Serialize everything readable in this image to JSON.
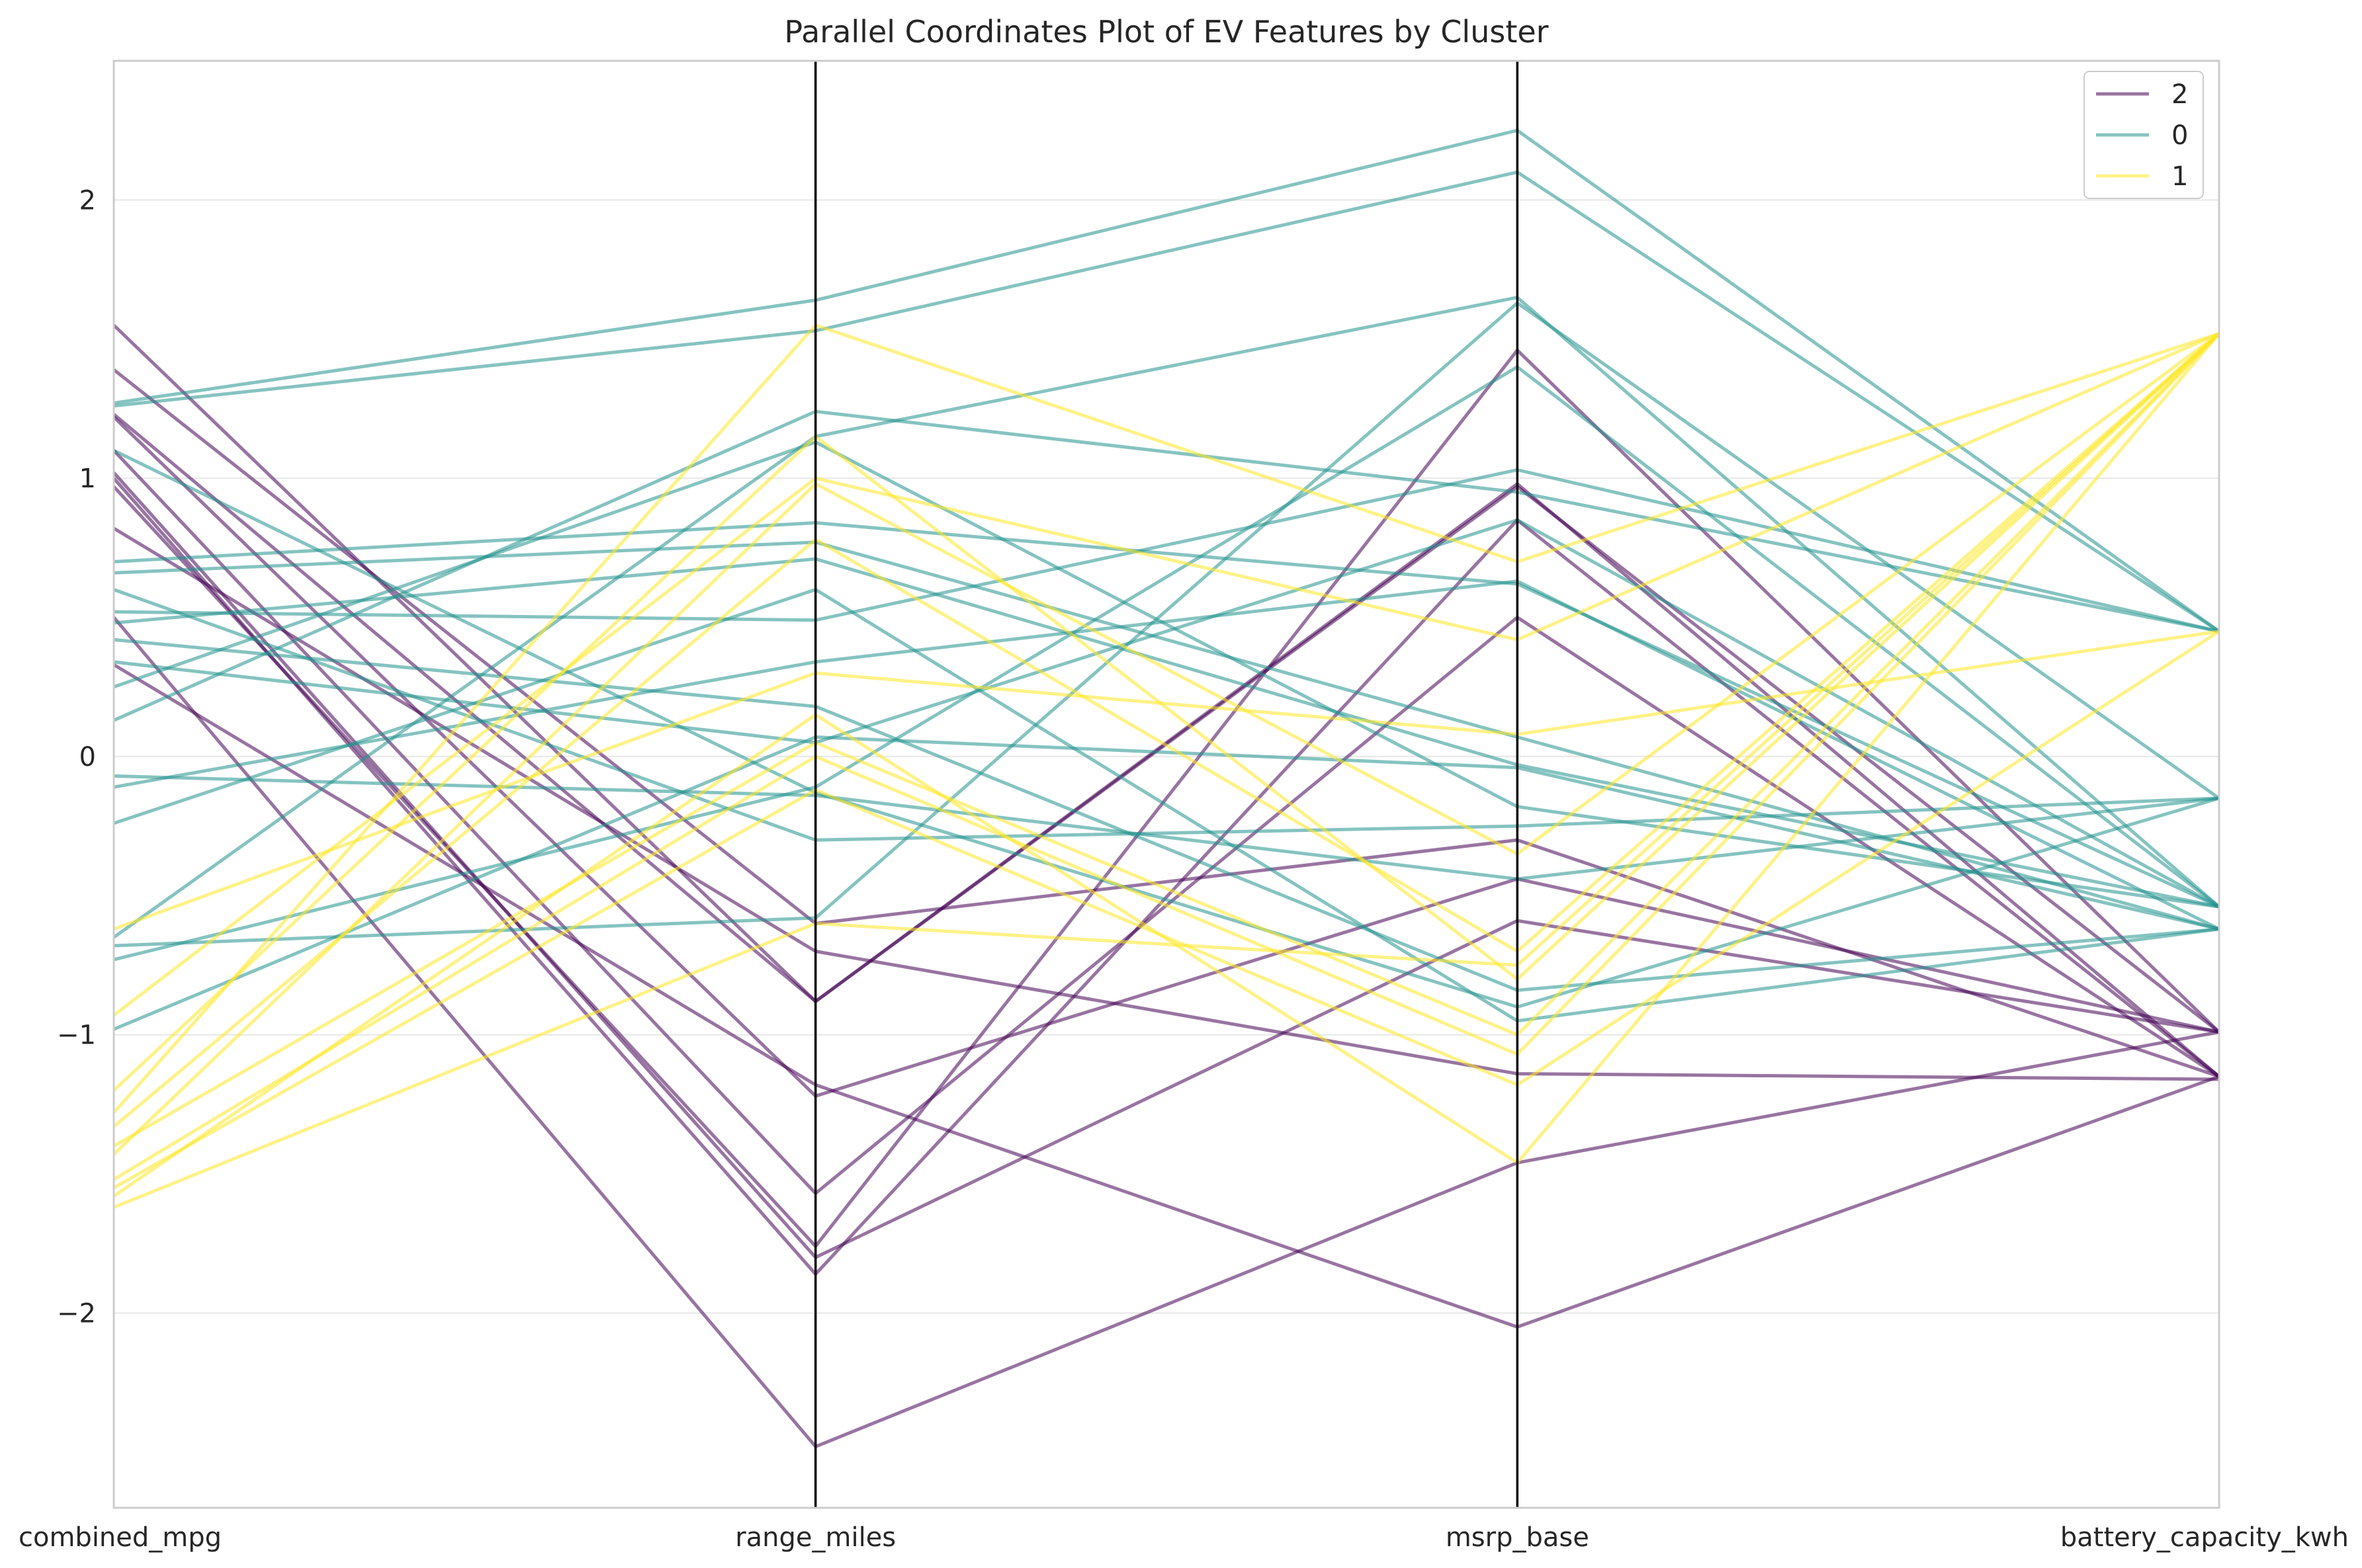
{
  "chart_data": {
    "type": "parallel_coordinates",
    "title": "Parallel Coordinates Plot of EV Features by Cluster",
    "axes": [
      "combined_mpg",
      "range_miles",
      "msrp_base",
      "battery_capacity_kwh"
    ],
    "ylim": [
      -2.7,
      2.5
    ],
    "yticks": [
      2,
      1,
      0,
      -1,
      -2
    ],
    "ytick_labels": [
      "2",
      "1",
      "0",
      "−1",
      "−2"
    ],
    "grid": "horizontal",
    "legend": {
      "placement": "top-right",
      "entries": [
        {
          "label": "2",
          "color": "#440154"
        },
        {
          "label": "0",
          "color": "#21918c"
        },
        {
          "label": "1",
          "color": "#fde725"
        }
      ]
    },
    "series": [
      {
        "cluster": "2",
        "color": "#440154",
        "lines": [
          [
            1.55,
            -0.88,
            0.97,
            -0.99
          ],
          [
            1.39,
            -0.6,
            -0.3,
            -1.15
          ],
          [
            1.23,
            -0.88,
            0.98,
            -1.15
          ],
          [
            1.22,
            -1.22,
            -0.44,
            -0.99
          ],
          [
            1.1,
            -1.57,
            0.5,
            -1.15
          ],
          [
            1.02,
            -1.8,
            -0.59,
            -0.99
          ],
          [
            1.0,
            -1.86,
            0.85,
            -1.15
          ],
          [
            0.97,
            -1.76,
            1.46,
            -0.99
          ],
          [
            0.82,
            -0.7,
            -1.14,
            -1.16
          ],
          [
            0.5,
            -2.48,
            -1.46,
            -0.99
          ],
          [
            0.33,
            -1.18,
            -2.05,
            -1.15
          ]
        ]
      },
      {
        "cluster": "0",
        "color": "#21918c",
        "lines": [
          [
            1.27,
            1.64,
            2.25,
            0.45
          ],
          [
            1.26,
            1.53,
            2.1,
            0.45
          ],
          [
            1.1,
            -0.13,
            -0.9,
            -0.15
          ],
          [
            0.7,
            0.84,
            0.62,
            -0.54
          ],
          [
            0.66,
            0.77,
            0.07,
            -0.62
          ],
          [
            0.6,
            -0.3,
            -0.25,
            -0.15
          ],
          [
            0.52,
            0.49,
            1.03,
            0.45
          ],
          [
            0.48,
            0.71,
            -0.03,
            -0.54
          ],
          [
            0.42,
            0.18,
            -0.84,
            -0.62
          ],
          [
            0.34,
            0.05,
            0.85,
            -0.54
          ],
          [
            0.25,
            1.13,
            -0.18,
            -0.54
          ],
          [
            0.13,
            1.24,
            0.95,
            0.45
          ],
          [
            -0.07,
            -0.14,
            -0.44,
            -0.15
          ],
          [
            -0.11,
            0.34,
            0.63,
            -0.62
          ],
          [
            -0.24,
            0.6,
            -0.95,
            -0.62
          ],
          [
            -0.65,
            1.15,
            1.65,
            -0.54
          ],
          [
            -0.68,
            -0.58,
            1.63,
            -0.15
          ],
          [
            -0.73,
            -0.11,
            1.4,
            -0.54
          ],
          [
            -0.98,
            0.07,
            -0.04,
            -0.62
          ]
        ]
      },
      {
        "cluster": "1",
        "color": "#fde725",
        "lines": [
          [
            -0.62,
            0.3,
            0.08,
            0.45
          ],
          [
            -0.93,
            1.0,
            0.42,
            1.52
          ],
          [
            -1.2,
            1.15,
            -0.8,
            1.52
          ],
          [
            -1.28,
            1.55,
            0.7,
            1.52
          ],
          [
            -1.33,
            0.78,
            -0.7,
            1.52
          ],
          [
            -1.4,
            0.05,
            -1.0,
            1.52
          ],
          [
            -1.43,
            0.98,
            -0.35,
            1.52
          ],
          [
            -1.52,
            0.0,
            -1.07,
            1.52
          ],
          [
            -1.55,
            -0.12,
            -1.18,
            0.45
          ],
          [
            -1.58,
            0.15,
            -1.46,
            1.52
          ],
          [
            -1.62,
            -0.6,
            -0.75,
            1.52
          ]
        ]
      }
    ]
  }
}
